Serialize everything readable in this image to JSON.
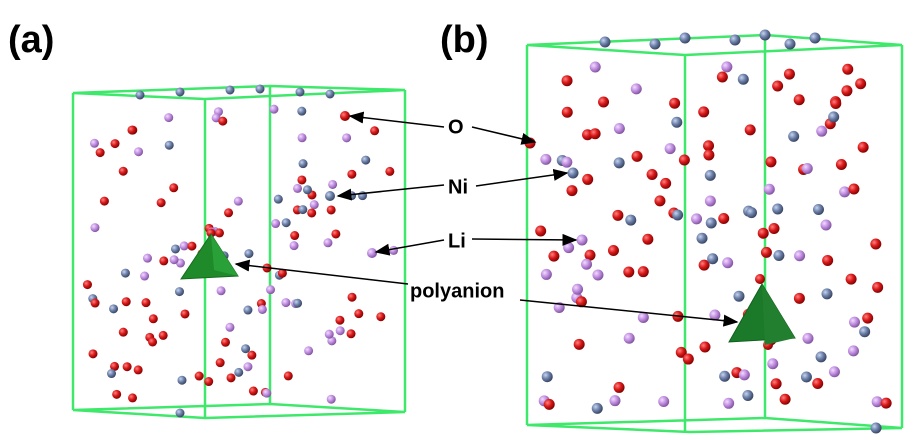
{
  "panels": [
    {
      "label": "(a)"
    },
    {
      "label": "(b)"
    }
  ],
  "labels": {
    "o": "O",
    "ni": "Ni",
    "li": "Li",
    "polyanion": "polyanion"
  }
}
